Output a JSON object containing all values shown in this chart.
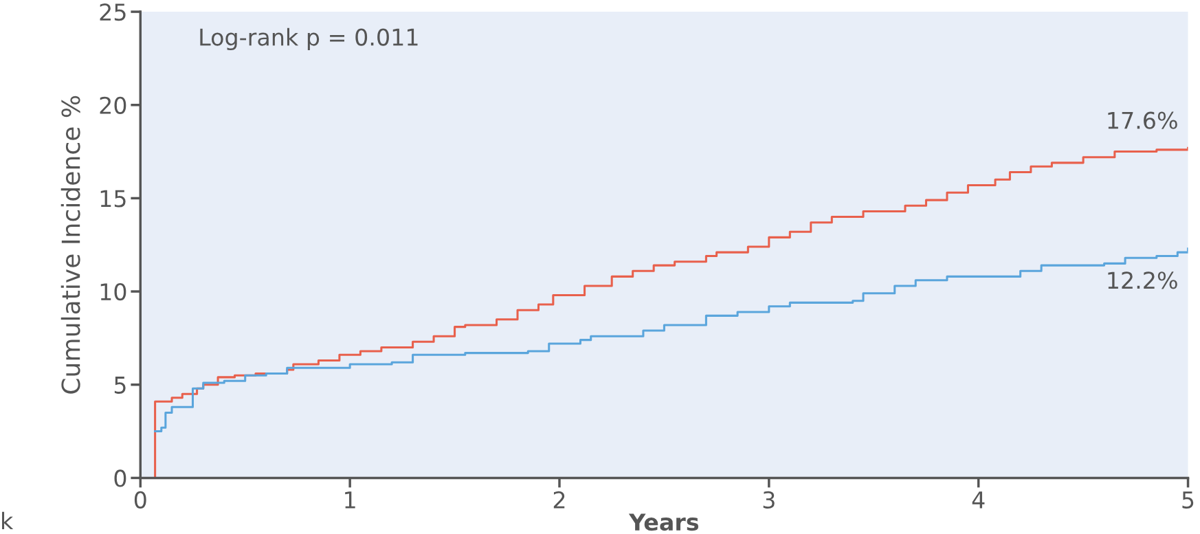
{
  "chart_data": {
    "type": "step",
    "xlabel": "Years",
    "ylabel": "Cumulative Incidence %",
    "xlim": [
      0,
      5
    ],
    "xticks": [
      0,
      1,
      2,
      3,
      4,
      5
    ],
    "ylim": [
      0,
      25
    ],
    "yticks": [
      0,
      5,
      10,
      15,
      20,
      25
    ],
    "grid": false,
    "annotations": [
      "Log-rank p = 0.011",
      {
        "text": "17.6%",
        "x": 5,
        "y": 17.6
      },
      {
        "text": "12.2%",
        "x": 5,
        "y": 12.2
      },
      "k"
    ],
    "series": [
      {
        "color": "#e8604c",
        "x": [
          0.04,
          0.07,
          0.15,
          0.2,
          0.27,
          0.3,
          0.37,
          0.45,
          0.55,
          0.7,
          0.73,
          0.85,
          0.95,
          1.05,
          1.15,
          1.3,
          1.4,
          1.5,
          1.55,
          1.7,
          1.8,
          1.9,
          1.97,
          2.12,
          2.25,
          2.35,
          2.45,
          2.55,
          2.7,
          2.75,
          2.9,
          3.0,
          3.1,
          3.2,
          3.3,
          3.45,
          3.65,
          3.75,
          3.85,
          3.95,
          4.08,
          4.15,
          4.25,
          4.35,
          4.5,
          4.65,
          4.85,
          5.0
        ],
        "values": [
          0,
          4.1,
          4.3,
          4.5,
          4.8,
          5.0,
          5.4,
          5.5,
          5.6,
          5.8,
          6.1,
          6.3,
          6.6,
          6.8,
          7.0,
          7.3,
          7.6,
          8.1,
          8.2,
          8.5,
          9.0,
          9.3,
          9.8,
          10.3,
          10.8,
          11.1,
          11.4,
          11.6,
          11.9,
          12.1,
          12.4,
          12.9,
          13.2,
          13.7,
          14.0,
          14.3,
          14.6,
          14.9,
          15.3,
          15.7,
          16.0,
          16.4,
          16.7,
          16.9,
          17.2,
          17.5,
          17.6,
          17.7
        ]
      },
      {
        "color": "#5aa5dc",
        "x": [
          0.07,
          0.1,
          0.12,
          0.15,
          0.25,
          0.3,
          0.4,
          0.5,
          0.6,
          0.7,
          1.0,
          1.2,
          1.3,
          1.55,
          1.85,
          1.95,
          2.1,
          2.15,
          2.4,
          2.5,
          2.7,
          2.85,
          3.0,
          3.1,
          3.4,
          3.45,
          3.6,
          3.7,
          3.85,
          4.2,
          4.3,
          4.6,
          4.7,
          4.85,
          4.95,
          5.0
        ],
        "values": [
          2.5,
          2.7,
          3.5,
          3.8,
          4.8,
          5.1,
          5.2,
          5.5,
          5.6,
          5.9,
          6.1,
          6.2,
          6.6,
          6.7,
          6.8,
          7.2,
          7.4,
          7.6,
          7.9,
          8.2,
          8.7,
          8.9,
          9.2,
          9.4,
          9.5,
          9.9,
          10.3,
          10.6,
          10.8,
          11.1,
          11.4,
          11.5,
          11.8,
          11.9,
          12.1,
          12.3
        ]
      }
    ]
  }
}
